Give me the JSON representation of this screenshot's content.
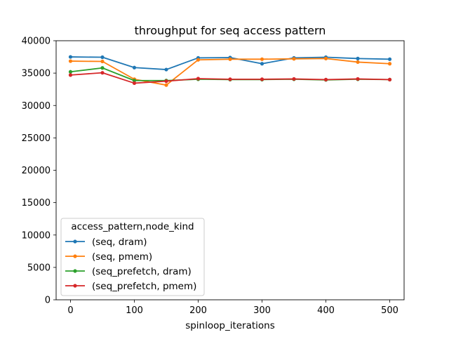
{
  "chart_data": {
    "type": "line",
    "title": "throughput for seq access pattern",
    "xlabel": "spinloop_iterations",
    "ylabel": "",
    "xlim": [
      -22.5,
      522.5
    ],
    "ylim": [
      0,
      40000
    ],
    "x_ticks": [
      "0",
      "100",
      "200",
      "300",
      "400",
      "500"
    ],
    "y_ticks": [
      "0",
      "5000",
      "10000",
      "15000",
      "20000",
      "25000",
      "30000",
      "35000",
      "40000"
    ],
    "x": [
      0,
      50,
      100,
      150,
      200,
      250,
      300,
      350,
      400,
      450,
      500
    ],
    "legend": {
      "title": "access_pattern,node_kind",
      "placement": "lower-left"
    },
    "grid": false,
    "series": [
      {
        "name": "(seq, dram)",
        "color": "#1f77b4",
        "values": [
          37500,
          37450,
          35850,
          35550,
          37350,
          37400,
          36450,
          37350,
          37450,
          37250,
          37150
        ]
      },
      {
        "name": "(seq, pmem)",
        "color": "#ff7f0e",
        "values": [
          36850,
          36800,
          34050,
          33150,
          37050,
          37150,
          37150,
          37200,
          37250,
          36700,
          36450
        ]
      },
      {
        "name": "(seq_prefetch, dram)",
        "color": "#2ca02c",
        "values": [
          35200,
          35800,
          33850,
          33850,
          34050,
          34000,
          34000,
          34050,
          33950,
          34050,
          34000
        ]
      },
      {
        "name": "(seq_prefetch, pmem)",
        "color": "#d62728",
        "values": [
          34700,
          35050,
          33450,
          33750,
          34150,
          34050,
          34050,
          34100,
          34000,
          34100,
          34000
        ]
      }
    ]
  }
}
